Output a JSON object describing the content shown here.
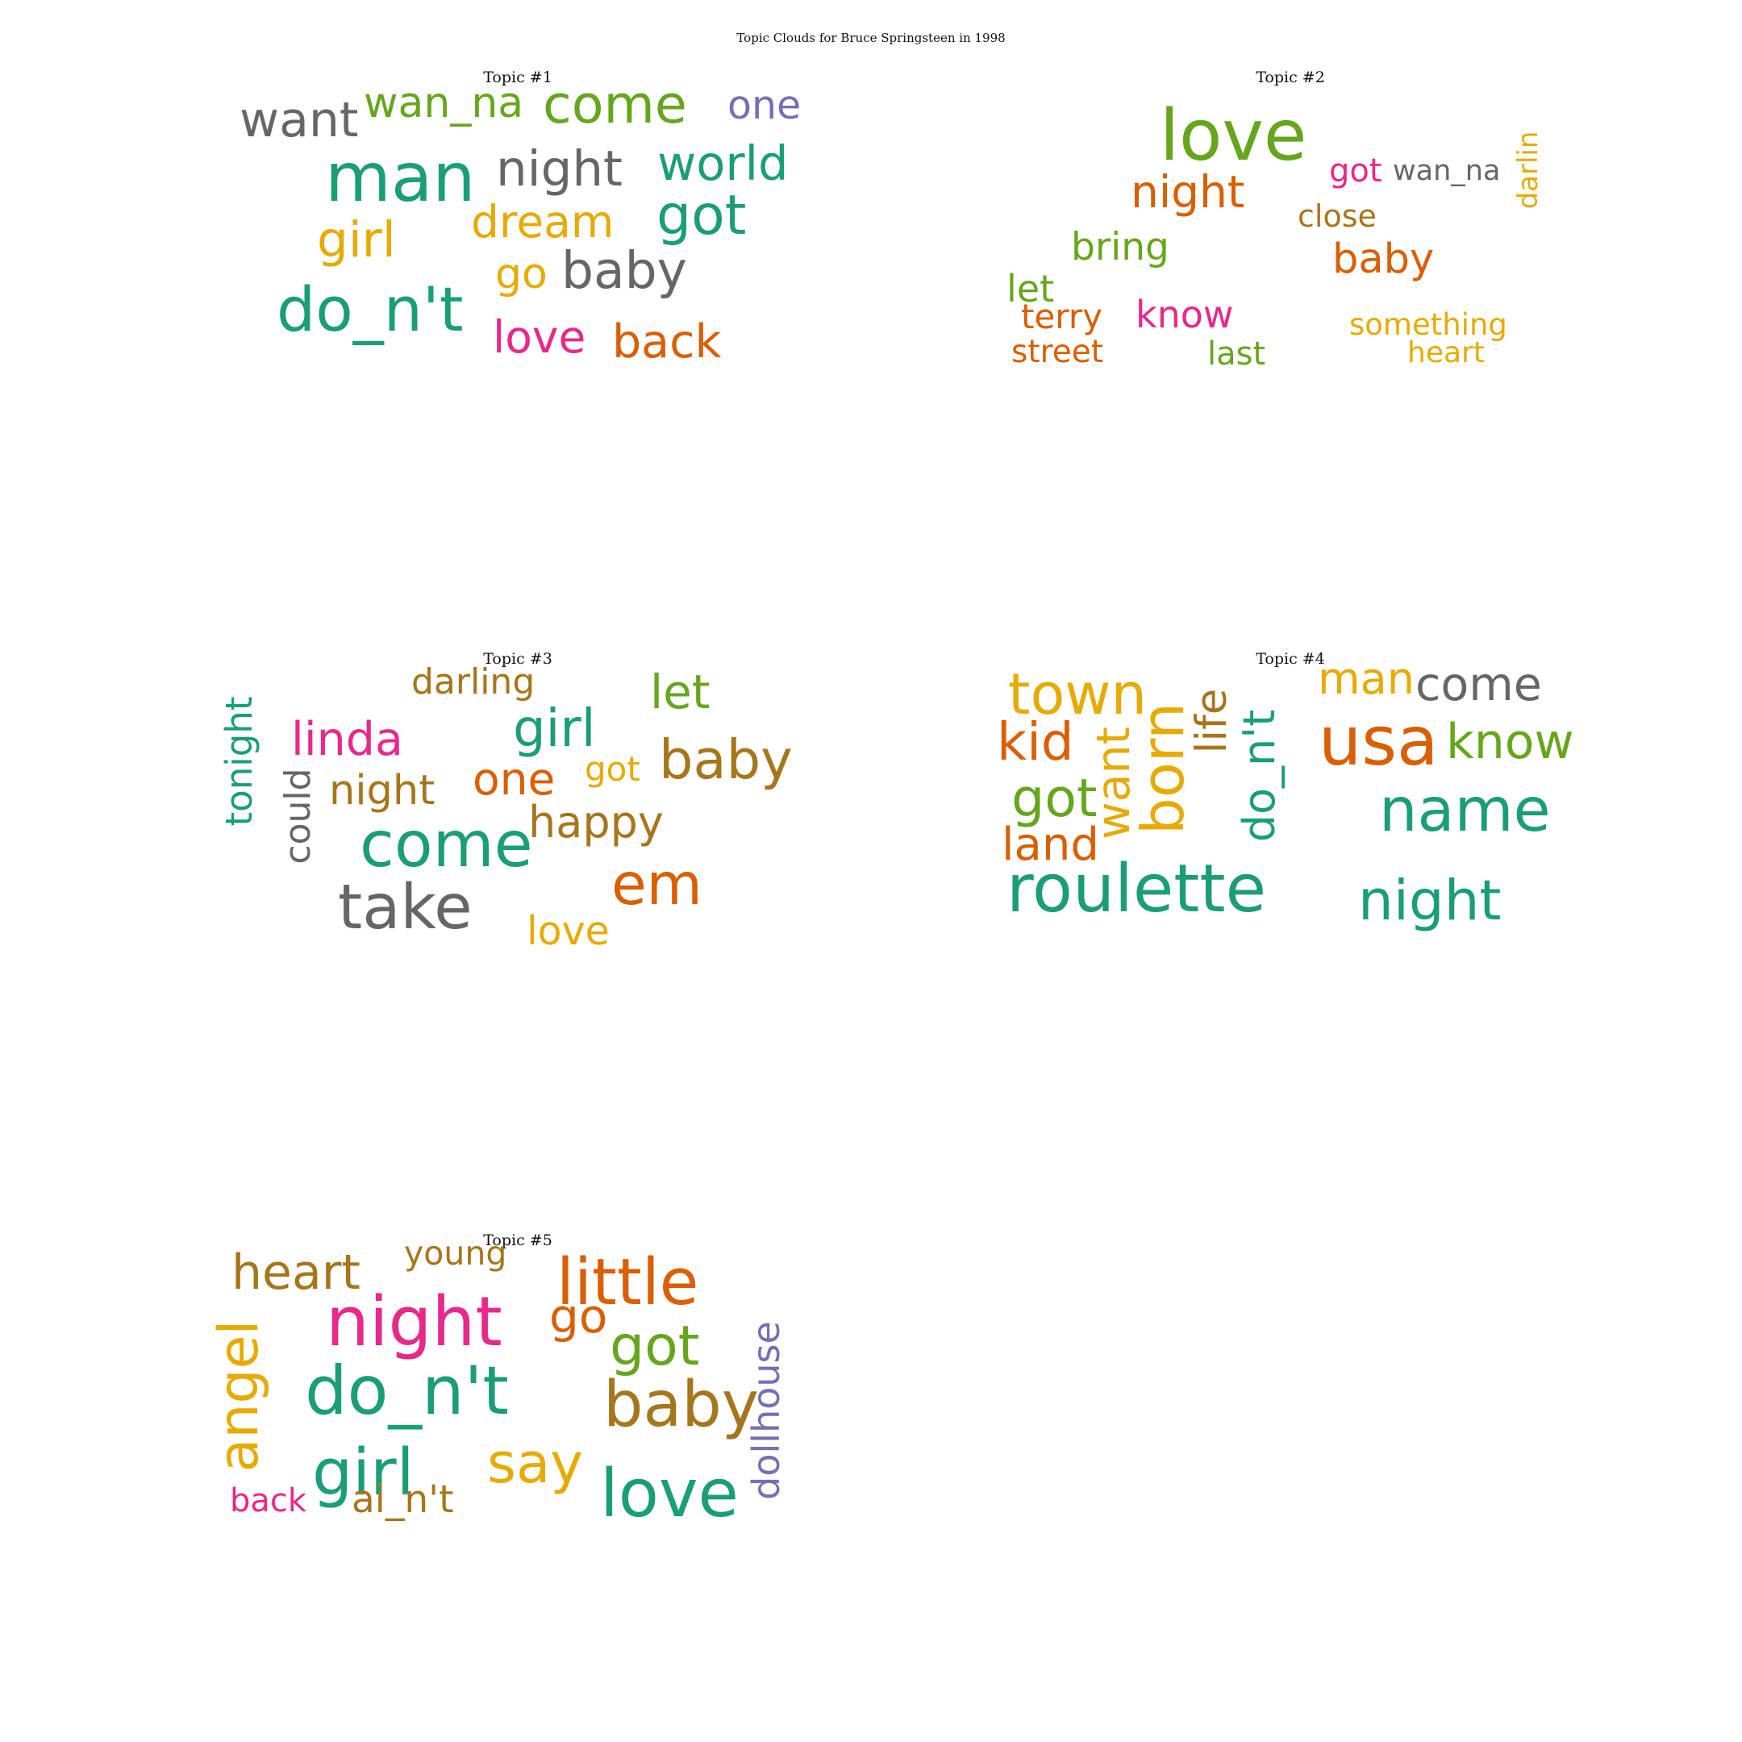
{
  "title": "Topic Clouds for Bruce Springsteen in 1998",
  "palette": {
    "teal": "#1b9e77",
    "orange": "#d95f02",
    "purple": "#7570b3",
    "pink": "#e7298a",
    "green": "#66a61e",
    "gold": "#e6ab02",
    "brown": "#a6761d",
    "gray": "#666666"
  },
  "chart_data": [
    {
      "type": "wordcloud",
      "title": "Topic #1",
      "words": [
        {
          "text": "want",
          "color": "gray"
        },
        {
          "text": "wan_na",
          "color": "green"
        },
        {
          "text": "come",
          "color": "green"
        },
        {
          "text": "one",
          "color": "purple"
        },
        {
          "text": "man",
          "color": "teal"
        },
        {
          "text": "night",
          "color": "gray"
        },
        {
          "text": "world",
          "color": "teal"
        },
        {
          "text": "girl",
          "color": "gold"
        },
        {
          "text": "dream",
          "color": "gold"
        },
        {
          "text": "got",
          "color": "teal"
        },
        {
          "text": "go",
          "color": "gold"
        },
        {
          "text": "baby",
          "color": "gray"
        },
        {
          "text": "do_n't",
          "color": "teal"
        },
        {
          "text": "love",
          "color": "pink"
        },
        {
          "text": "back",
          "color": "orange"
        }
      ]
    },
    {
      "type": "wordcloud",
      "title": "Topic #2",
      "words": [
        {
          "text": "love",
          "color": "green"
        },
        {
          "text": "got",
          "color": "pink"
        },
        {
          "text": "wan_na",
          "color": "gray"
        },
        {
          "text": "darlin",
          "color": "gold"
        },
        {
          "text": "night",
          "color": "orange"
        },
        {
          "text": "close",
          "color": "brown"
        },
        {
          "text": "bring",
          "color": "green"
        },
        {
          "text": "baby",
          "color": "orange"
        },
        {
          "text": "let",
          "color": "green"
        },
        {
          "text": "terry",
          "color": "orange"
        },
        {
          "text": "know",
          "color": "pink"
        },
        {
          "text": "something",
          "color": "gold"
        },
        {
          "text": "street",
          "color": "orange"
        },
        {
          "text": "last",
          "color": "green"
        },
        {
          "text": "heart",
          "color": "gold"
        }
      ]
    },
    {
      "type": "wordcloud",
      "title": "Topic #3",
      "words": [
        {
          "text": "darling",
          "color": "brown"
        },
        {
          "text": "let",
          "color": "green"
        },
        {
          "text": "tonight",
          "color": "teal"
        },
        {
          "text": "linda",
          "color": "pink"
        },
        {
          "text": "girl",
          "color": "teal"
        },
        {
          "text": "baby",
          "color": "brown"
        },
        {
          "text": "could",
          "color": "gray"
        },
        {
          "text": "night",
          "color": "brown"
        },
        {
          "text": "one",
          "color": "orange"
        },
        {
          "text": "got",
          "color": "gold"
        },
        {
          "text": "happy",
          "color": "brown"
        },
        {
          "text": "come",
          "color": "teal"
        },
        {
          "text": "em",
          "color": "orange"
        },
        {
          "text": "take",
          "color": "gray"
        },
        {
          "text": "love",
          "color": "gold"
        }
      ]
    },
    {
      "type": "wordcloud",
      "title": "Topic #4",
      "words": [
        {
          "text": "town",
          "color": "gold"
        },
        {
          "text": "born",
          "color": "gold"
        },
        {
          "text": "life",
          "color": "brown"
        },
        {
          "text": "do_n't",
          "color": "teal"
        },
        {
          "text": "man",
          "color": "gold"
        },
        {
          "text": "come",
          "color": "gray"
        },
        {
          "text": "kid",
          "color": "orange"
        },
        {
          "text": "want",
          "color": "gold"
        },
        {
          "text": "usa",
          "color": "orange"
        },
        {
          "text": "know",
          "color": "green"
        },
        {
          "text": "got",
          "color": "green"
        },
        {
          "text": "name",
          "color": "teal"
        },
        {
          "text": "land",
          "color": "orange"
        },
        {
          "text": "roulette",
          "color": "teal"
        },
        {
          "text": "night",
          "color": "teal"
        }
      ]
    },
    {
      "type": "wordcloud",
      "title": "Topic #5",
      "words": [
        {
          "text": "heart",
          "color": "brown"
        },
        {
          "text": "young",
          "color": "brown"
        },
        {
          "text": "little",
          "color": "orange"
        },
        {
          "text": "night",
          "color": "pink"
        },
        {
          "text": "go",
          "color": "orange"
        },
        {
          "text": "got",
          "color": "green"
        },
        {
          "text": "angel",
          "color": "gold"
        },
        {
          "text": "dollhouse",
          "color": "purple"
        },
        {
          "text": "do_n't",
          "color": "teal"
        },
        {
          "text": "baby",
          "color": "brown"
        },
        {
          "text": "girl",
          "color": "teal"
        },
        {
          "text": "say",
          "color": "gold"
        },
        {
          "text": "love",
          "color": "teal"
        },
        {
          "text": "back",
          "color": "pink"
        },
        {
          "text": "ai_n't",
          "color": "brown"
        }
      ]
    }
  ]
}
